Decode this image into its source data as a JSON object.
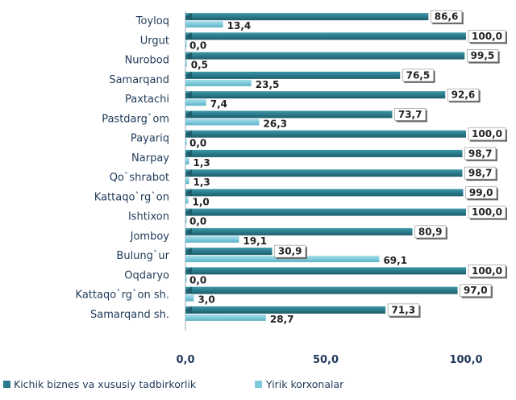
{
  "chart_data": {
    "type": "bar",
    "orientation": "horizontal",
    "categories": [
      "Toyloq",
      "Urgut",
      "Nurobod",
      "Samarqand",
      "Paxtachi",
      "Pastdarg`om",
      "Payariq",
      "Narpay",
      "Qo`shrabot",
      "Kattaqo`rg`on",
      "Ishtixon",
      "Jomboy",
      "Bulung`ur",
      "Oqdaryo",
      "Kattaqo`rg`on sh.",
      "Samarqand sh."
    ],
    "series": [
      {
        "name": "Kichik biznes va xususiy tadbirkorlik",
        "values": [
          86.6,
          100.0,
          99.5,
          76.5,
          92.6,
          73.7,
          100.0,
          98.7,
          98.7,
          99.0,
          100.0,
          80.9,
          30.9,
          100.0,
          97.0,
          71.3
        ],
        "labels": [
          "86,6",
          "100,0",
          "99,5",
          "76,5",
          "92,6",
          "73,7",
          "100,0",
          "98,7",
          "98,7",
          "99,0",
          "100,0",
          "80,9",
          "30,9",
          "100,0",
          "97,0",
          "71,3"
        ],
        "color": "#2b7b8c"
      },
      {
        "name": "Yirik korxonalar",
        "values": [
          13.4,
          0.0,
          0.5,
          23.5,
          7.4,
          26.3,
          0.0,
          1.3,
          1.3,
          1.0,
          0.0,
          19.1,
          69.1,
          0.0,
          3.0,
          28.7
        ],
        "labels": [
          "13,4",
          "0,0",
          "0,5",
          "23,5",
          "7,4",
          "26,3",
          "0,0",
          "1,3",
          "1,3",
          "1,0",
          "0,0",
          "19,1",
          "69,1",
          "0,0",
          "3,0",
          "28,7"
        ],
        "color": "#7fcbdc"
      }
    ],
    "xlim": [
      0,
      100
    ],
    "xticks": [
      "0,0",
      "50,0",
      "100,0"
    ],
    "legend": "bottom"
  }
}
